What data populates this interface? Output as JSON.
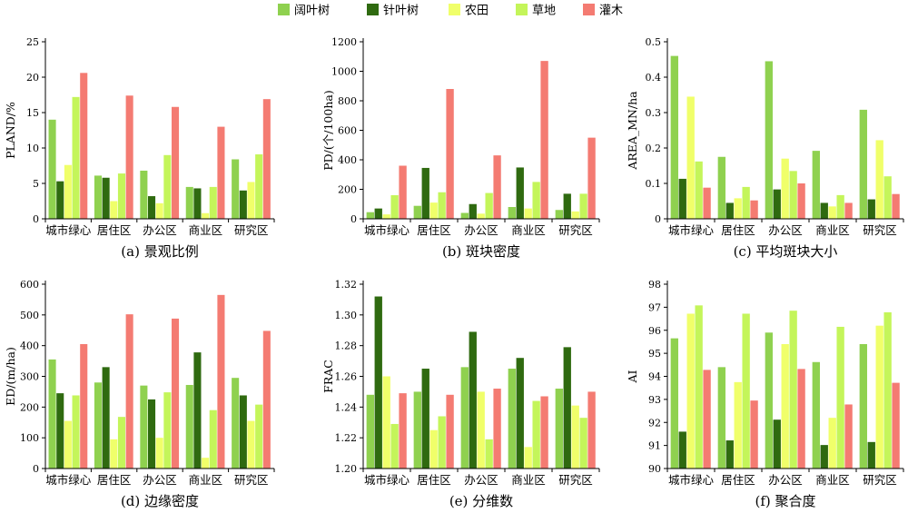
{
  "legend": [
    {
      "name": "阔叶树",
      "color": "#8fd14f"
    },
    {
      "name": "针叶树",
      "color": "#2f6a10"
    },
    {
      "name": "农田",
      "color": "#f0ff6a"
    },
    {
      "name": "草地",
      "color": "#c4f55a"
    },
    {
      "name": "灌木",
      "color": "#f47b72"
    }
  ],
  "chart_data": [
    {
      "type": "bar",
      "caption": "(a) 景观比例",
      "ylabel": "PLAND/%",
      "categories": [
        "城市绿心",
        "居住区",
        "办公区",
        "商业区",
        "研究区"
      ],
      "ylim": [
        0,
        25
      ],
      "yticks": [
        0,
        5,
        10,
        15,
        20,
        25
      ],
      "series": [
        {
          "name": "阔叶树",
          "values": [
            14.0,
            6.1,
            6.8,
            4.5,
            8.4
          ]
        },
        {
          "name": "针叶树",
          "values": [
            5.3,
            5.8,
            3.2,
            4.3,
            4.0
          ]
        },
        {
          "name": "农田",
          "values": [
            7.6,
            2.5,
            2.2,
            0.8,
            5.2
          ]
        },
        {
          "name": "草地",
          "values": [
            17.2,
            6.4,
            9.0,
            4.5,
            9.1
          ]
        },
        {
          "name": "灌木",
          "values": [
            20.6,
            17.4,
            15.8,
            13.0,
            16.9
          ]
        }
      ]
    },
    {
      "type": "bar",
      "caption": "(b) 斑块密度",
      "ylabel": "PD/(个/100ha)",
      "categories": [
        "城市绿心",
        "居住区",
        "办公区",
        "商业区",
        "研究区"
      ],
      "ylim": [
        0,
        1200
      ],
      "yticks": [
        0,
        200,
        400,
        600,
        800,
        1000,
        1200
      ],
      "series": [
        {
          "name": "阔叶树",
          "values": [
            45,
            88,
            40,
            80,
            60
          ]
        },
        {
          "name": "针叶树",
          "values": [
            70,
            345,
            100,
            348,
            170
          ]
        },
        {
          "name": "农田",
          "values": [
            30,
            110,
            35,
            70,
            50
          ]
        },
        {
          "name": "草地",
          "values": [
            160,
            180,
            175,
            250,
            170
          ]
        },
        {
          "name": "灌木",
          "values": [
            360,
            880,
            430,
            1070,
            550
          ]
        }
      ]
    },
    {
      "type": "bar",
      "caption": "(c) 平均斑块大小",
      "ylabel": "AREA_MN/ha",
      "categories": [
        "城市绿心",
        "居住区",
        "办公区",
        "商业区",
        "研究区"
      ],
      "ylim": [
        0,
        0.5
      ],
      "yticks": [
        "0",
        "0.1",
        "0.2",
        "0.3",
        "0.4",
        "0.5"
      ],
      "series": [
        {
          "name": "阔叶树",
          "values": [
            0.46,
            0.175,
            0.445,
            0.192,
            0.308
          ]
        },
        {
          "name": "针叶树",
          "values": [
            0.113,
            0.045,
            0.083,
            0.045,
            0.055
          ]
        },
        {
          "name": "农田",
          "values": [
            0.345,
            0.058,
            0.17,
            0.035,
            0.222
          ]
        },
        {
          "name": "草地",
          "values": [
            0.162,
            0.09,
            0.135,
            0.067,
            0.12
          ]
        },
        {
          "name": "灌木",
          "values": [
            0.088,
            0.052,
            0.1,
            0.045,
            0.07
          ]
        }
      ]
    },
    {
      "type": "bar",
      "caption": "(d) 边缘密度",
      "ylabel": "ED/(m/ha)",
      "categories": [
        "城市绿心",
        "居住区",
        "办公区",
        "商业区",
        "研究区"
      ],
      "ylim": [
        0,
        600
      ],
      "yticks": [
        0,
        100,
        200,
        300,
        400,
        500,
        600
      ],
      "series": [
        {
          "name": "阔叶树",
          "values": [
            355,
            280,
            270,
            272,
            295
          ]
        },
        {
          "name": "针叶树",
          "values": [
            245,
            330,
            225,
            378,
            238
          ]
        },
        {
          "name": "农田",
          "values": [
            155,
            95,
            100,
            35,
            155
          ]
        },
        {
          "name": "草地",
          "values": [
            238,
            168,
            248,
            190,
            208
          ]
        },
        {
          "name": "灌木",
          "values": [
            405,
            502,
            488,
            565,
            448
          ]
        }
      ]
    },
    {
      "type": "bar",
      "caption": "(e) 分维数",
      "ylabel": "FRAC",
      "categories": [
        "城市绿心",
        "居住区",
        "办公区",
        "商业区",
        "研究区"
      ],
      "ylim": [
        1.2,
        1.32
      ],
      "yticks": [
        "1.20",
        "1.22",
        "1.24",
        "1.26",
        "1.28",
        "1.30",
        "1.32"
      ],
      "series": [
        {
          "name": "阔叶树",
          "values": [
            1.248,
            1.25,
            1.266,
            1.265,
            1.252
          ]
        },
        {
          "name": "针叶树",
          "values": [
            1.312,
            1.265,
            1.289,
            1.272,
            1.279
          ]
        },
        {
          "name": "农田",
          "values": [
            1.26,
            1.225,
            1.25,
            1.214,
            1.241
          ]
        },
        {
          "name": "草地",
          "values": [
            1.229,
            1.234,
            1.219,
            1.244,
            1.233
          ]
        },
        {
          "name": "灌木",
          "values": [
            1.249,
            1.248,
            1.252,
            1.247,
            1.25
          ]
        }
      ]
    },
    {
      "type": "bar",
      "caption": "(f) 聚合度",
      "ylabel": "AI",
      "categories": [
        "城市绿心",
        "居住区",
        "办公区",
        "商业区",
        "研究区"
      ],
      "ylim": [
        90,
        98
      ],
      "yticks": [
        90,
        91,
        92,
        93,
        94,
        95,
        96,
        97,
        98
      ],
      "series": [
        {
          "name": "阔叶树",
          "values": [
            95.65,
            94.4,
            95.9,
            94.62,
            95.4
          ]
        },
        {
          "name": "针叶树",
          "values": [
            91.6,
            91.22,
            92.12,
            91.02,
            91.15
          ]
        },
        {
          "name": "农田",
          "values": [
            96.72,
            93.75,
            95.4,
            92.2,
            96.2
          ]
        },
        {
          "name": "草地",
          "values": [
            97.08,
            96.72,
            96.85,
            96.15,
            96.78
          ]
        },
        {
          "name": "灌木",
          "values": [
            94.28,
            92.95,
            94.32,
            92.78,
            93.72
          ]
        }
      ]
    }
  ]
}
